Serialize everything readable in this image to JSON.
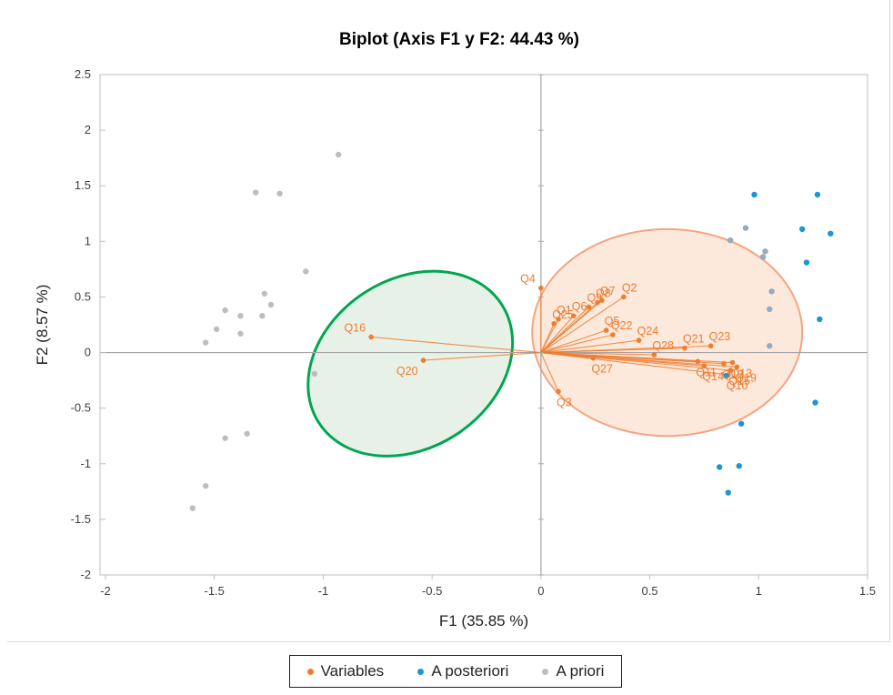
{
  "colors": {
    "variables": "#ed7d31",
    "a_posteriori": "#1a96d8",
    "a_priori": "#bdbdbd",
    "ellipse_orange": "#f4a582",
    "ellipse_orange_fill": "#fbe5d6",
    "ellipse_green": "#00a651",
    "ellipse_green_fill": "#e6efe6",
    "axis_line": "#a6a6a6",
    "grid": "#bfbfbf"
  },
  "legend": {
    "items": [
      {
        "key": "variables",
        "label": "Variables"
      },
      {
        "key": "a_posteriori",
        "label": "A posteriori"
      },
      {
        "key": "a_priori",
        "label": "A priori"
      }
    ]
  },
  "chart_data": {
    "type": "scatter",
    "title": "Biplot (Axis F1 y F2: 44.43 %)",
    "xlabel": "F1 (35.85 %)",
    "ylabel": "F2 (8.57 %)",
    "xlim": [
      -2,
      1.5
    ],
    "ylim": [
      -2,
      2.5
    ],
    "xticks": [
      -2,
      -1.5,
      -1,
      -0.5,
      0,
      0.5,
      1,
      1.5
    ],
    "xtick_labels": [
      "-2",
      "-1.5",
      "-1",
      "-0.5",
      "0",
      "0.5",
      "1",
      "1.5"
    ],
    "yticks": [
      -2,
      -1.5,
      -1,
      -0.5,
      0,
      0.5,
      1,
      1.5,
      2,
      2.5
    ],
    "ytick_labels": [
      "-2",
      "-1.5",
      "-1",
      "-0.5",
      "0",
      "0.5",
      "1",
      "1.5",
      "2",
      "2.5"
    ],
    "grid": false,
    "legend_position": "bottom",
    "variables": [
      {
        "label": "Q4",
        "x": 0.0,
        "y": 0.58
      },
      {
        "label": "Q2",
        "x": 0.38,
        "y": 0.5
      },
      {
        "label": "Q7",
        "x": 0.28,
        "y": 0.47
      },
      {
        "label": "Q8",
        "x": 0.26,
        "y": 0.45
      },
      {
        "label": "Q9",
        "x": 0.22,
        "y": 0.41
      },
      {
        "label": "Q1",
        "x": 0.08,
        "y": 0.3
      },
      {
        "label": "Q6",
        "x": 0.15,
        "y": 0.33
      },
      {
        "label": "Q25",
        "x": 0.06,
        "y": 0.26
      },
      {
        "label": "Q5",
        "x": 0.3,
        "y": 0.2
      },
      {
        "label": "Q22",
        "x": 0.33,
        "y": 0.16
      },
      {
        "label": "Q24",
        "x": 0.45,
        "y": 0.11
      },
      {
        "label": "Q21",
        "x": 0.66,
        "y": 0.04
      },
      {
        "label": "Q23",
        "x": 0.78,
        "y": 0.06
      },
      {
        "label": "Q27",
        "x": 0.24,
        "y": -0.05
      },
      {
        "label": "Q28",
        "x": 0.52,
        "y": -0.02
      },
      {
        "label": "Q11",
        "x": 0.72,
        "y": -0.08
      },
      {
        "label": "Q14",
        "x": 0.75,
        "y": -0.12
      },
      {
        "label": "Q12",
        "x": 0.84,
        "y": -0.1
      },
      {
        "label": "Q13",
        "x": 0.88,
        "y": -0.09
      },
      {
        "label": "Q15",
        "x": 0.87,
        "y": -0.16
      },
      {
        "label": "Q19",
        "x": 0.9,
        "y": -0.13
      },
      {
        "label": "Q10",
        "x": 0.86,
        "y": -0.2
      },
      {
        "label": "Q16",
        "x": -0.78,
        "y": 0.14
      },
      {
        "label": "Q20",
        "x": -0.54,
        "y": -0.07
      },
      {
        "label": "Q3",
        "x": 0.08,
        "y": -0.35
      }
    ],
    "a_posteriori": [
      {
        "x": 0.98,
        "y": 1.42
      },
      {
        "x": 1.27,
        "y": 1.42
      },
      {
        "x": 1.2,
        "y": 1.11
      },
      {
        "x": 1.33,
        "y": 1.07
      },
      {
        "x": 1.22,
        "y": 0.81
      },
      {
        "x": 1.28,
        "y": 0.3
      },
      {
        "x": 1.26,
        "y": -0.45
      },
      {
        "x": 0.92,
        "y": -0.64
      },
      {
        "x": 0.82,
        "y": -1.03
      },
      {
        "x": 0.91,
        "y": -1.02
      },
      {
        "x": 0.86,
        "y": -1.26
      },
      {
        "x": 0.85,
        "y": -0.21
      }
    ],
    "a_priori": [
      {
        "x": -0.93,
        "y": 1.78
      },
      {
        "x": -1.31,
        "y": 1.44
      },
      {
        "x": -1.2,
        "y": 1.43
      },
      {
        "x": -1.08,
        "y": 0.73
      },
      {
        "x": -1.27,
        "y": 0.53
      },
      {
        "x": -1.24,
        "y": 0.43
      },
      {
        "x": -1.45,
        "y": 0.38
      },
      {
        "x": -1.38,
        "y": 0.33
      },
      {
        "x": -1.28,
        "y": 0.33
      },
      {
        "x": -1.49,
        "y": 0.21
      },
      {
        "x": -1.38,
        "y": 0.17
      },
      {
        "x": -1.54,
        "y": 0.09
      },
      {
        "x": -1.04,
        "y": -0.19
      },
      {
        "x": -1.35,
        "y": -0.73
      },
      {
        "x": -1.45,
        "y": -0.77
      },
      {
        "x": -1.54,
        "y": -1.2
      },
      {
        "x": -1.6,
        "y": -1.4
      },
      {
        "x": 0.87,
        "y": 1.01
      },
      {
        "x": 0.94,
        "y": 1.12
      },
      {
        "x": 1.03,
        "y": 0.91
      },
      {
        "x": 1.02,
        "y": 0.86
      },
      {
        "x": 1.06,
        "y": 0.55
      },
      {
        "x": 1.05,
        "y": 0.39
      },
      {
        "x": 1.05,
        "y": 0.06
      }
    ],
    "ellipses": [
      {
        "name": "",
        "cx": 0.58,
        "cy": 0.18,
        "rx": 0.62,
        "ry": 0.93,
        "rotation_deg": 0,
        "color_key": "ellipse_orange"
      },
      {
        "name": "",
        "cx": -0.6,
        "cy": -0.1,
        "rx": 0.5,
        "ry": 0.76,
        "rotation_deg": -33,
        "color_key": "ellipse_green"
      }
    ]
  }
}
